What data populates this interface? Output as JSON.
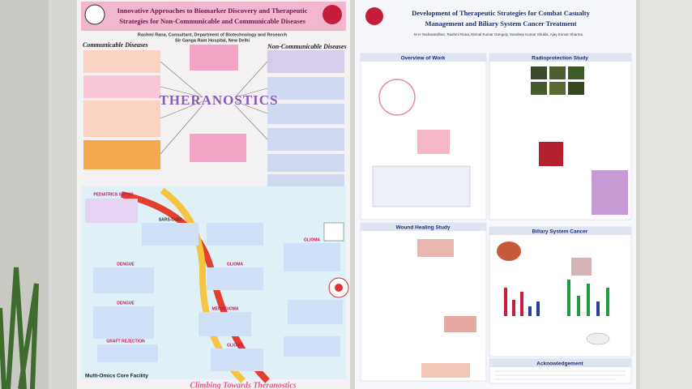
{
  "left_poster": {
    "title": [
      "Innovative Approaches to Biomarker Discovery and Therapeutic",
      "Strategies for Non-Communicable and Communicable Diseases"
    ],
    "author": [
      "Rashmi Rana, Consultant, Department of Biotechnology and Research",
      "Sir Ganga Ram Hospital, New Delhi"
    ],
    "communicable_heading": "Communicable Diseases",
    "noncommunicable_heading": "Non-Communicable Diseases",
    "center": "THERANOSTICS",
    "labels": [
      "PEDIATRICS SEPSIS",
      "SARS-CoV2",
      "DENGUE",
      "DENGUE",
      "GRAFT REJECTION",
      "GLIOMA",
      "MENINGIOMA",
      "GLIOMA",
      "GLIOMA"
    ],
    "facility": "Multi-Omics Core Facility",
    "footer": "Climbing Towards Theranostics"
  },
  "right_poster": {
    "title": [
      "Development of Therapeutic Strategies for Combat Casualty",
      "Management and Biliary System Cancer Treatment"
    ],
    "authors": "M H Yashavardhan, Rashmi Rana, Nirmal Kumar Ganguly, Sandeep Kumar Shukla, Ajay Kumar Sharma",
    "sections": [
      "Overview of Work",
      "Radioprotection Study",
      "Wound Healing Study",
      "Biliary System Cancer",
      "Acknowledgement"
    ]
  }
}
